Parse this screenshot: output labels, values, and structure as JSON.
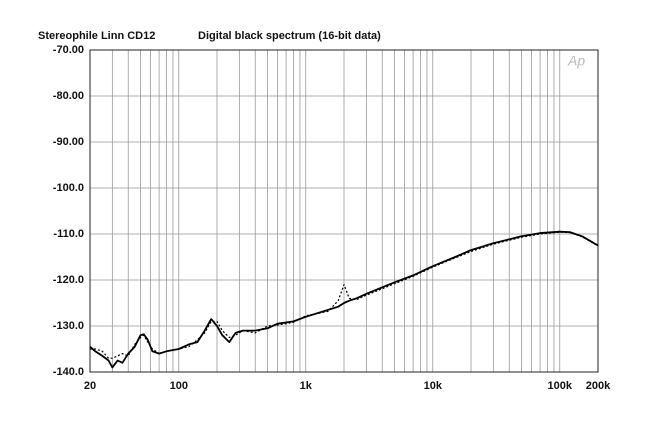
{
  "chart_data": {
    "type": "line",
    "title": "Stereophile  Linn CD12",
    "subtitle": "Digital black spectrum (16-bit data)",
    "logo": "Ap",
    "x": [
      20,
      22,
      25,
      28,
      30,
      33,
      36,
      40,
      45,
      50,
      53,
      57,
      62,
      70,
      80,
      100,
      120,
      140,
      160,
      180,
      200,
      220,
      250,
      280,
      320,
      400,
      500,
      600,
      800,
      1000,
      1500,
      1800,
      2000,
      2200,
      2500,
      3000,
      5000,
      7000,
      10000,
      15000,
      20000,
      30000,
      50000,
      70000,
      100000,
      120000,
      150000,
      200000
    ],
    "series": [
      {
        "name": "solid",
        "color": "#000000",
        "dash": false,
        "values": [
          -134.5,
          -135.5,
          -136.5,
          -137.5,
          -139,
          -137.5,
          -138,
          -136,
          -134.5,
          -132,
          -131.8,
          -133,
          -135.5,
          -136,
          -135.5,
          -135,
          -134,
          -133.5,
          -131,
          -128.5,
          -130,
          -132,
          -133.5,
          -131.5,
          -131,
          -131,
          -130.5,
          -129.5,
          -129,
          -128,
          -126.5,
          -125.8,
          -125,
          -124.5,
          -124,
          -123,
          -120.5,
          -119,
          -117,
          -115,
          -113.5,
          -112,
          -110.5,
          -109.8,
          -109.5,
          -109.6,
          -110.5,
          -112.5
        ]
      },
      {
        "name": "dotted",
        "color": "#000000",
        "dash": true,
        "values": [
          -135,
          -135,
          -135.5,
          -137,
          -137,
          -136.5,
          -136,
          -136.5,
          -134,
          -132.5,
          -132,
          -133.5,
          -135,
          -136,
          -135.5,
          -135,
          -134.5,
          -133,
          -131.5,
          -129,
          -129,
          -131,
          -132.5,
          -132,
          -131,
          -131.5,
          -130,
          -129.8,
          -129.2,
          -127.8,
          -126.8,
          -124.5,
          -121,
          -124,
          -124.3,
          -123.3,
          -120.8,
          -119.2,
          -117.2,
          -115.2,
          -113.8,
          -112.2,
          -110.7,
          -110,
          -109.6,
          -109.7,
          -110.6,
          -112.6
        ]
      }
    ],
    "log_x": true,
    "xlim": [
      20,
      200000
    ],
    "xticks": [
      20,
      100,
      {
        "value": 1000,
        "label": "1k"
      },
      {
        "value": 10000,
        "label": "10k"
      },
      {
        "value": 100000,
        "label": "100k"
      },
      {
        "value": 200000,
        "label": "200k"
      }
    ],
    "xminor": [
      30,
      40,
      50,
      60,
      70,
      80,
      90,
      200,
      300,
      400,
      500,
      600,
      700,
      800,
      900,
      2000,
      3000,
      4000,
      5000,
      6000,
      7000,
      8000,
      9000,
      20000,
      30000,
      40000,
      50000,
      60000,
      70000,
      80000,
      90000
    ],
    "ylim": [
      -140,
      -70
    ],
    "yticks": [
      {
        "value": -70,
        "label": "-70.00"
      },
      {
        "value": -80,
        "label": "-80.00"
      },
      {
        "value": -90,
        "label": "-90.00"
      },
      {
        "value": -100,
        "label": "-100.0"
      },
      {
        "value": -110,
        "label": "-110.0"
      },
      {
        "value": -120,
        "label": "-120.0"
      },
      {
        "value": -130,
        "label": "-130.0"
      },
      {
        "value": -140,
        "label": "-140.0"
      }
    ],
    "grid": true
  }
}
